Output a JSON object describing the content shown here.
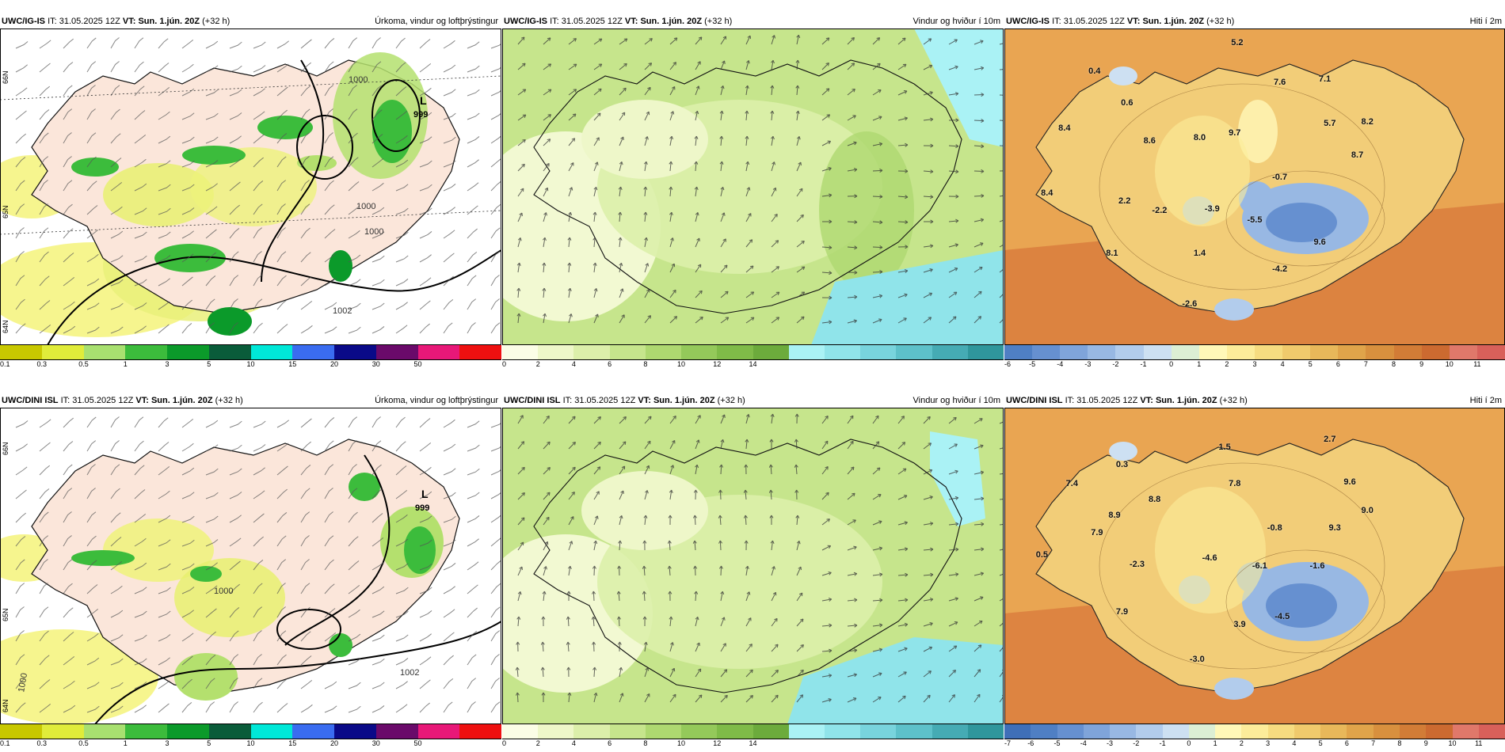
{
  "rows": [
    {
      "model": "UWC/IG-IS",
      "it_label": "IT:",
      "it_value": "31.05.2025 12Z",
      "vt_label": "VT:",
      "vt_value": "Sun. 1.jún. 20Z",
      "lead": "(+32 h)",
      "precip": {
        "title": "Úrkoma, vindur og loftþrýstingur",
        "low_label": "L",
        "low_value": "999",
        "isobars": [
          "1000",
          "1000",
          "1002",
          "1000"
        ],
        "lat_labels": [
          "66N",
          "65N",
          "64N"
        ]
      },
      "wind": {
        "title": "Vindur og hviður í 10m"
      },
      "temp": {
        "title": "Hiti í 2m",
        "values": [
          "5.2",
          "0.4",
          "0.6",
          "7.6",
          "7.1",
          "8.4",
          "8.6",
          "8.0",
          "9.7",
          "5.7",
          "8.2",
          "8.7",
          "-0.7",
          "8.4",
          "2.2",
          "-2.2",
          "-3.9",
          "-5.5",
          "9.6",
          "8.1",
          "1.4",
          "-4.2",
          "-2.6"
        ]
      }
    },
    {
      "model": "UWC/DINI ISL",
      "it_label": "IT:",
      "it_value": "31.05.2025 12Z",
      "vt_label": "VT:",
      "vt_value": "Sun. 1.jún. 20Z",
      "lead": "(+32 h)",
      "precip": {
        "title": "Úrkoma, vindur og loftþrýstingur",
        "low_label": "L",
        "low_value": "999",
        "isobars": [
          "1000",
          "1002",
          "1000"
        ],
        "lat_labels": [
          "66N",
          "65N",
          "64N"
        ]
      },
      "wind": {
        "title": "Vindur og hviður í 10m"
      },
      "temp": {
        "title": "Hiti í 2m",
        "values": [
          "0.3",
          "1.5",
          "2.7",
          "7.4",
          "7.8",
          "9.6",
          "8.8",
          "8.9",
          "9.0",
          "7.9",
          "-0.8",
          "9.3",
          "0.5",
          "-2.3",
          "-4.6",
          "-6.1",
          "-1.6",
          "7.9",
          "-4.5",
          "3.9",
          "-3.0"
        ]
      }
    }
  ],
  "legends": {
    "precip": {
      "ticks": [
        "0.1",
        "0.3",
        "0.5",
        "1",
        "3",
        "5",
        "10",
        "15",
        "20",
        "30",
        "50"
      ],
      "colors": [
        "#c8c800",
        "#e0ec3a",
        "#a8e070",
        "#3cbc3c",
        "#0b9a2a",
        "#0a5c3a",
        "#00e8d8",
        "#3a6cf0",
        "#0a0a88",
        "#6a0a6a",
        "#e81878",
        "#ee1010"
      ]
    },
    "wind": {
      "ticks": [
        "0",
        "2",
        "4",
        "6",
        "8",
        "10",
        "12",
        "14"
      ],
      "colors": [
        "#fbfde6",
        "#eef7c9",
        "#dcefaa",
        "#c6e58c",
        "#aed870",
        "#94c95a",
        "#7fbb48",
        "#6cab3c",
        "#aaf2f5",
        "#90e4ea",
        "#78d4dd",
        "#5dc1ca",
        "#45abb4",
        "#2f969c"
      ]
    },
    "temp_top": {
      "ticks": [
        "-6",
        "-5",
        "-4",
        "-3",
        "-2",
        "-1",
        "0",
        "1",
        "2",
        "3",
        "4",
        "5",
        "6",
        "7",
        "8",
        "9",
        "10",
        "11"
      ],
      "colors": [
        "#4f7fc4",
        "#6690d0",
        "#7fa4da",
        "#98b8e3",
        "#b2ccec",
        "#cde0f2",
        "#dcefd4",
        "#fff8b8",
        "#fcec9a",
        "#f6dc80",
        "#f0ca6c",
        "#e8b85a",
        "#e0a44a",
        "#d8903e",
        "#d27c36",
        "#cc6a30",
        "#e0786a",
        "#d8605a"
      ]
    },
    "temp_bottom": {
      "ticks": [
        "-7",
        "-6",
        "-5",
        "-4",
        "-3",
        "-2",
        "-1",
        "0",
        "1",
        "2",
        "3",
        "4",
        "5",
        "6",
        "7",
        "8",
        "9",
        "10",
        "11"
      ],
      "colors": [
        "#3f6fb8",
        "#4f7fc4",
        "#6690d0",
        "#7fa4da",
        "#98b8e3",
        "#b2ccec",
        "#cde0f2",
        "#dcefd4",
        "#fff8b8",
        "#fcec9a",
        "#f6dc80",
        "#f0ca6c",
        "#e8b85a",
        "#e0a44a",
        "#d8903e",
        "#d27c36",
        "#cc6a30",
        "#e0786a",
        "#d8605a"
      ]
    }
  },
  "colors": {
    "precip_sea": "#ffffff",
    "precip_land": "#fbe6da",
    "wind_base": "#cfe59a",
    "wind_sea_strong": "#a0eaf0",
    "temp_sea": "#e9a552",
    "temp_land": "#f2cd78",
    "temp_sea_warm": "#d87a3c"
  }
}
